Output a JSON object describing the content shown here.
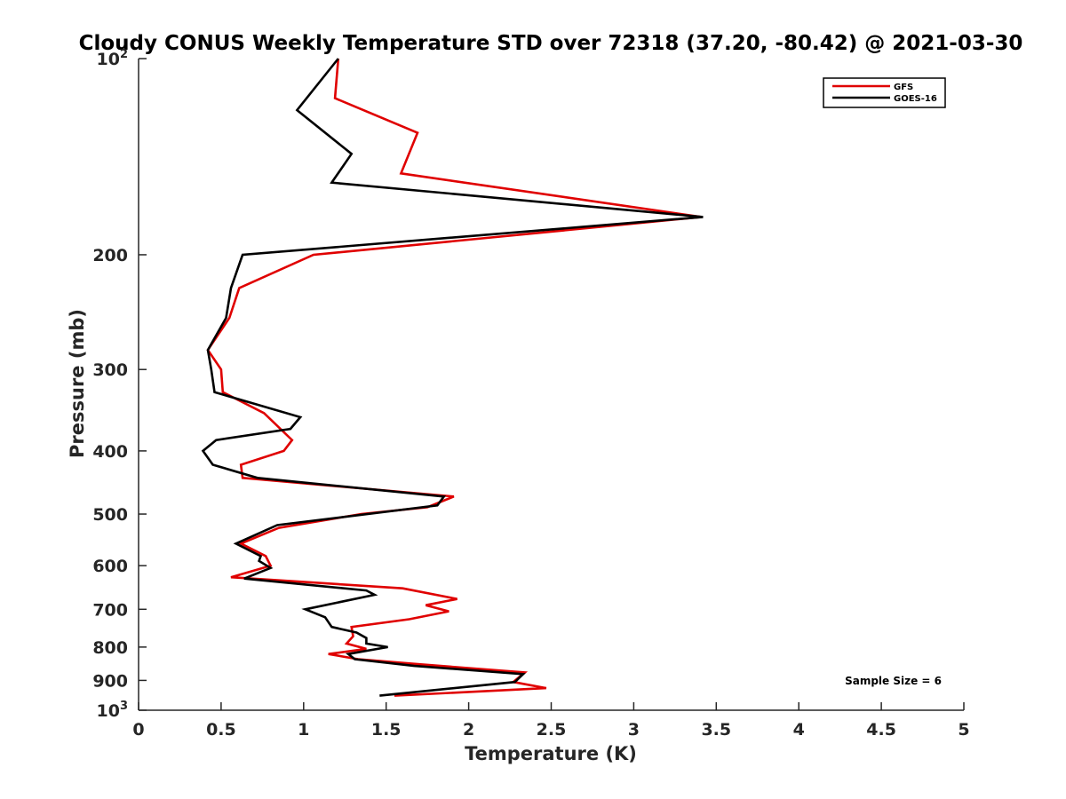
{
  "chart_data": {
    "type": "line",
    "title": "Cloudy CONUS Weekly Temperature STD over 72318 (37.20, -80.42) @ 2021-03-30",
    "xlabel": "Temperature (K)",
    "ylabel": "Pressure (mb)",
    "xlim": [
      0,
      5
    ],
    "ylim": [
      100,
      1000
    ],
    "yscale": "log",
    "y_reversed": true,
    "x_ticks": [
      {
        "v": 0,
        "label": "0"
      },
      {
        "v": 0.5,
        "label": "0.5"
      },
      {
        "v": 1,
        "label": "1"
      },
      {
        "v": 1.5,
        "label": "1.5"
      },
      {
        "v": 2,
        "label": "2"
      },
      {
        "v": 2.5,
        "label": "2.5"
      },
      {
        "v": 3,
        "label": "3"
      },
      {
        "v": 3.5,
        "label": "3.5"
      },
      {
        "v": 4,
        "label": "4"
      },
      {
        "v": 4.5,
        "label": "4.5"
      },
      {
        "v": 5,
        "label": "5"
      }
    ],
    "y_ticks": [
      {
        "v": 100,
        "label": "10",
        "sup": "2"
      },
      {
        "v": 200,
        "label": "200"
      },
      {
        "v": 300,
        "label": "300"
      },
      {
        "v": 400,
        "label": "400"
      },
      {
        "v": 500,
        "label": "500"
      },
      {
        "v": 600,
        "label": "600"
      },
      {
        "v": 700,
        "label": "700"
      },
      {
        "v": 800,
        "label": "800"
      },
      {
        "v": 900,
        "label": "900"
      },
      {
        "v": 1000,
        "label": "10",
        "sup": "3"
      }
    ],
    "legend_position": "top-right",
    "annotation": "Sample Size = 6",
    "series": [
      {
        "name": "GFS",
        "color": "#e00000",
        "points": [
          [
            1.21,
            100
          ],
          [
            1.19,
            115
          ],
          [
            1.69,
            130
          ],
          [
            1.59,
            150
          ],
          [
            3.41,
            175
          ],
          [
            1.06,
            200
          ],
          [
            0.61,
            225
          ],
          [
            0.55,
            250
          ],
          [
            0.42,
            280
          ],
          [
            0.5,
            300
          ],
          [
            0.51,
            325
          ],
          [
            0.76,
            350
          ],
          [
            0.93,
            385
          ],
          [
            0.88,
            400
          ],
          [
            0.62,
            420
          ],
          [
            0.63,
            440
          ],
          [
            1.91,
            470
          ],
          [
            1.75,
            488
          ],
          [
            1.35,
            500
          ],
          [
            0.85,
            525
          ],
          [
            0.62,
            555
          ],
          [
            0.77,
            580
          ],
          [
            0.8,
            600
          ],
          [
            0.56,
            625
          ],
          [
            1.6,
            650
          ],
          [
            1.93,
            675
          ],
          [
            1.74,
            690
          ],
          [
            1.88,
            705
          ],
          [
            1.64,
            725
          ],
          [
            1.29,
            745
          ],
          [
            1.3,
            770
          ],
          [
            1.26,
            790
          ],
          [
            1.38,
            805
          ],
          [
            1.15,
            820
          ],
          [
            1.33,
            835
          ],
          [
            1.7,
            850
          ],
          [
            2.34,
            875
          ],
          [
            2.27,
            905
          ],
          [
            2.47,
            925
          ],
          [
            1.55,
            950
          ]
        ]
      },
      {
        "name": "GOES-16",
        "color": "#000000",
        "points": [
          [
            1.21,
            100
          ],
          [
            0.96,
            120
          ],
          [
            1.29,
            140
          ],
          [
            1.17,
            155
          ],
          [
            3.42,
            175
          ],
          [
            0.63,
            200
          ],
          [
            0.56,
            225
          ],
          [
            0.53,
            250
          ],
          [
            0.42,
            280
          ],
          [
            0.44,
            300
          ],
          [
            0.46,
            325
          ],
          [
            0.98,
            355
          ],
          [
            0.92,
            370
          ],
          [
            0.47,
            385
          ],
          [
            0.39,
            400
          ],
          [
            0.45,
            420
          ],
          [
            0.72,
            440
          ],
          [
            1.85,
            470
          ],
          [
            1.81,
            485
          ],
          [
            0.84,
            520
          ],
          [
            0.59,
            555
          ],
          [
            0.74,
            580
          ],
          [
            0.73,
            590
          ],
          [
            0.8,
            605
          ],
          [
            0.64,
            628
          ],
          [
            1.38,
            655
          ],
          [
            1.43,
            665
          ],
          [
            1.01,
            700
          ],
          [
            1.13,
            720
          ],
          [
            1.17,
            745
          ],
          [
            1.32,
            760
          ],
          [
            1.38,
            775
          ],
          [
            1.38,
            790
          ],
          [
            1.51,
            800
          ],
          [
            1.27,
            820
          ],
          [
            1.31,
            835
          ],
          [
            1.67,
            855
          ],
          [
            2.33,
            880
          ],
          [
            2.28,
            905
          ],
          [
            1.46,
            950
          ]
        ]
      }
    ]
  }
}
